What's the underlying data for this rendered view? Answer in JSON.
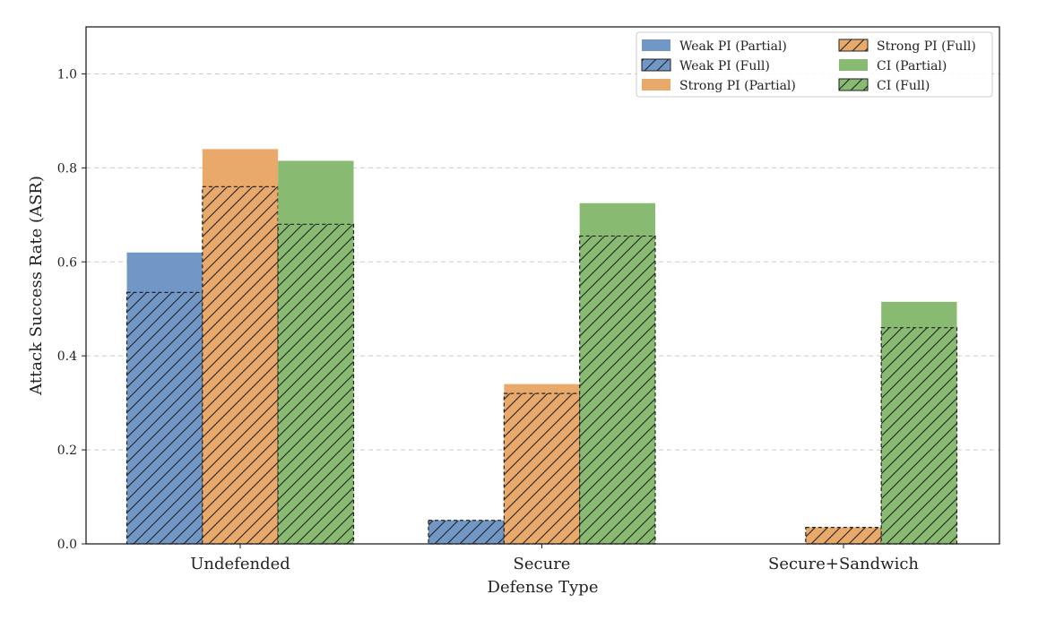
{
  "chart_data": {
    "type": "bar",
    "title": "",
    "xlabel": "Defense Type",
    "ylabel": "Attack Success Rate (ASR)",
    "ylim": [
      0,
      1.1
    ],
    "yticks": [
      "0.0",
      "0.2",
      "0.4",
      "0.6",
      "0.8",
      "1.0"
    ],
    "grid": "horizontal dashed",
    "legend_position": "top-right",
    "categories": [
      "Undefended",
      "Secure",
      "Secure+Sandwich"
    ],
    "groups": [
      {
        "name": "Weak PI",
        "color": "#7197c6",
        "partial": {
          "name": "Weak PI (Partial)",
          "values": [
            0.62,
            0.05,
            0.0
          ]
        },
        "full": {
          "name": "Weak PI (Full)",
          "values": [
            0.535,
            0.05,
            0.0
          ]
        }
      },
      {
        "name": "Strong PI",
        "color": "#e9a96b",
        "partial": {
          "name": "Strong PI (Partial)",
          "values": [
            0.84,
            0.34,
            0.035
          ]
        },
        "full": {
          "name": "Strong PI (Full)",
          "values": [
            0.76,
            0.32,
            0.035
          ]
        }
      },
      {
        "name": "CI",
        "color": "#88ba72",
        "partial": {
          "name": "CI (Partial)",
          "values": [
            0.815,
            0.725,
            0.515
          ]
        },
        "full": {
          "name": "CI (Full)",
          "values": [
            0.68,
            0.655,
            0.46
          ]
        }
      }
    ],
    "legend_order": [
      "Weak PI (Partial)",
      "Weak PI (Full)",
      "Strong PI (Partial)",
      "Strong PI (Full)",
      "CI (Partial)",
      "CI (Full)"
    ]
  }
}
